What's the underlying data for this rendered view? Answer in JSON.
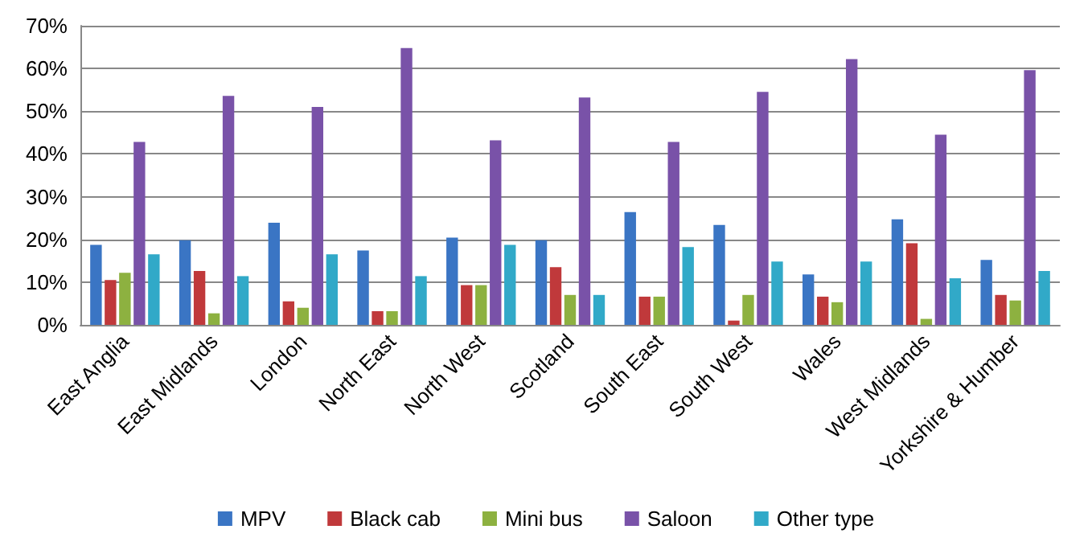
{
  "chart_data": {
    "type": "bar",
    "categories": [
      "East Anglia",
      "East Midlands",
      "London",
      "North East",
      "North West",
      "Scotland",
      "South East",
      "South West",
      "Wales",
      "West Midlands",
      "Yorkshire & Humber"
    ],
    "series": [
      {
        "name": "MPV",
        "color": "#3a75c4",
        "values": [
          18.7,
          19.8,
          23.9,
          17.4,
          20.4,
          19.8,
          26.4,
          23.4,
          11.8,
          24.7,
          15.2
        ]
      },
      {
        "name": "Black cab",
        "color": "#c0393b",
        "values": [
          10.5,
          12.6,
          5.5,
          3.2,
          9.3,
          13.5,
          6.6,
          1,
          6.6,
          19.1,
          7
        ]
      },
      {
        "name": "Mini bus",
        "color": "#8db140",
        "values": [
          12.2,
          2.7,
          4,
          3.2,
          9.3,
          7,
          6.6,
          7,
          5.3,
          1.4,
          5.7
        ]
      },
      {
        "name": "Saloon",
        "color": "#7952a8",
        "values": [
          42.8,
          53.6,
          51,
          64.8,
          43.2,
          53.2,
          42.8,
          54.5,
          62.2,
          44.5,
          59.6
        ]
      },
      {
        "name": "Other type",
        "color": "#31a9c8",
        "values": [
          16.5,
          11.4,
          16.5,
          11.4,
          18.7,
          7,
          18.2,
          14.8,
          14.8,
          10.9,
          12.6
        ]
      }
    ],
    "ylim": [
      0,
      70
    ],
    "yticks": [
      {
        "value": 0,
        "label": "0%"
      },
      {
        "value": 10,
        "label": "10%"
      },
      {
        "value": 20,
        "label": "20%"
      },
      {
        "value": 30,
        "label": "30%"
      },
      {
        "value": 40,
        "label": "40%"
      },
      {
        "value": 50,
        "label": "50%"
      },
      {
        "value": 60,
        "label": "60%"
      },
      {
        "value": 70,
        "label": "70%"
      }
    ],
    "grid": "y",
    "legend": "bottom"
  }
}
